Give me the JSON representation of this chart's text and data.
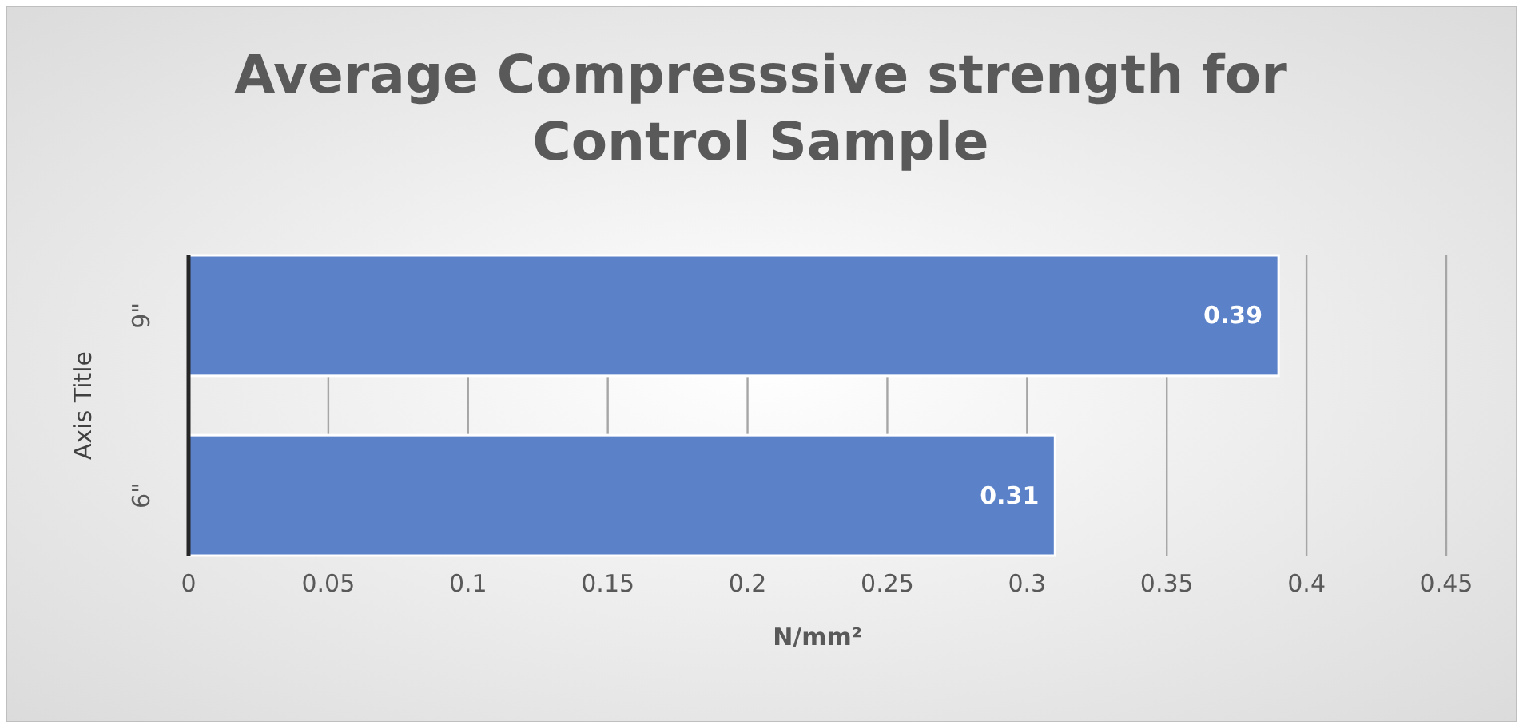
{
  "chart_data": {
    "type": "bar",
    "orientation": "horizontal",
    "title": "Average Compresssive strength for Control Sample",
    "xlabel": "N/mm²",
    "ylabel": "Axis Title",
    "categories": [
      "9\"",
      "6\""
    ],
    "values": [
      0.39,
      0.31
    ],
    "color": "#5b82c9",
    "xlim": [
      0,
      0.45
    ],
    "xticks": [
      0,
      0.05,
      0.1,
      0.15,
      0.2,
      0.25,
      0.3,
      0.35,
      0.4,
      0.45
    ],
    "grid": "x",
    "data_labels": true
  }
}
